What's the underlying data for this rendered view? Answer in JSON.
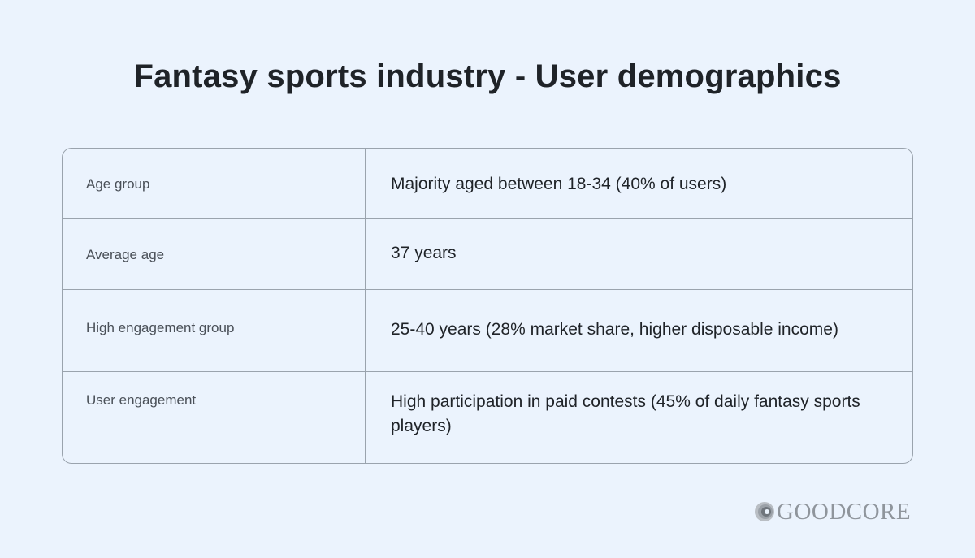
{
  "title": "Fantasy sports industry - User demographics",
  "table": {
    "rows": [
      {
        "label": "Age group",
        "value": "Majority aged between 18-34 (40% of users)"
      },
      {
        "label": "Average age",
        "value": "37 years"
      },
      {
        "label": "High engagement group",
        "value": "25-40 years (28% market share, higher disposable income)"
      },
      {
        "label": "User engagement",
        "value": "High participation in paid contests (45% of daily fantasy sports players)"
      }
    ]
  },
  "logo": {
    "text": "GOODCORE",
    "icon": "goodcore-logo-icon"
  },
  "colors": {
    "background": "#ebf3fd",
    "border": "#9aa3ad",
    "text_dark": "#1f2328",
    "text_label": "#4a5058",
    "logo_gray": "#8f959c"
  }
}
